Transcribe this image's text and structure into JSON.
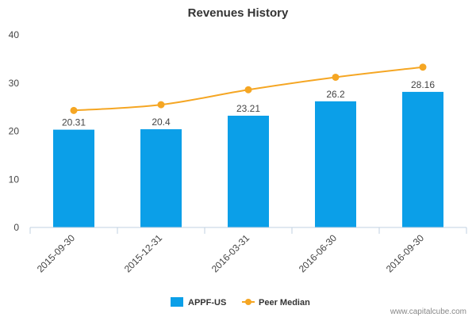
{
  "chart_data": {
    "type": "bar",
    "title": "Revenues History",
    "xlabel": "",
    "ylabel": "",
    "categories": [
      "2015-09-30",
      "2015-12-31",
      "2016-03-31",
      "2016-06-30",
      "2016-09-30"
    ],
    "ylim": [
      0,
      40
    ],
    "yticks": [
      0,
      10,
      20,
      30,
      40
    ],
    "grid": false,
    "legend_position": "bottom-center",
    "series": [
      {
        "name": "APPF-US",
        "type": "bar",
        "color": "#0b9fe8",
        "values": [
          20.31,
          20.4,
          23.21,
          26.2,
          28.16
        ],
        "labels": [
          "20.31",
          "20.4",
          "23.21",
          "26.2",
          "28.16"
        ]
      },
      {
        "name": "Peer Median",
        "type": "line",
        "color": "#f5a623",
        "values": [
          24.3,
          25.5,
          28.6,
          31.2,
          33.3
        ]
      }
    ],
    "credit": "www.capitalcube.com"
  }
}
